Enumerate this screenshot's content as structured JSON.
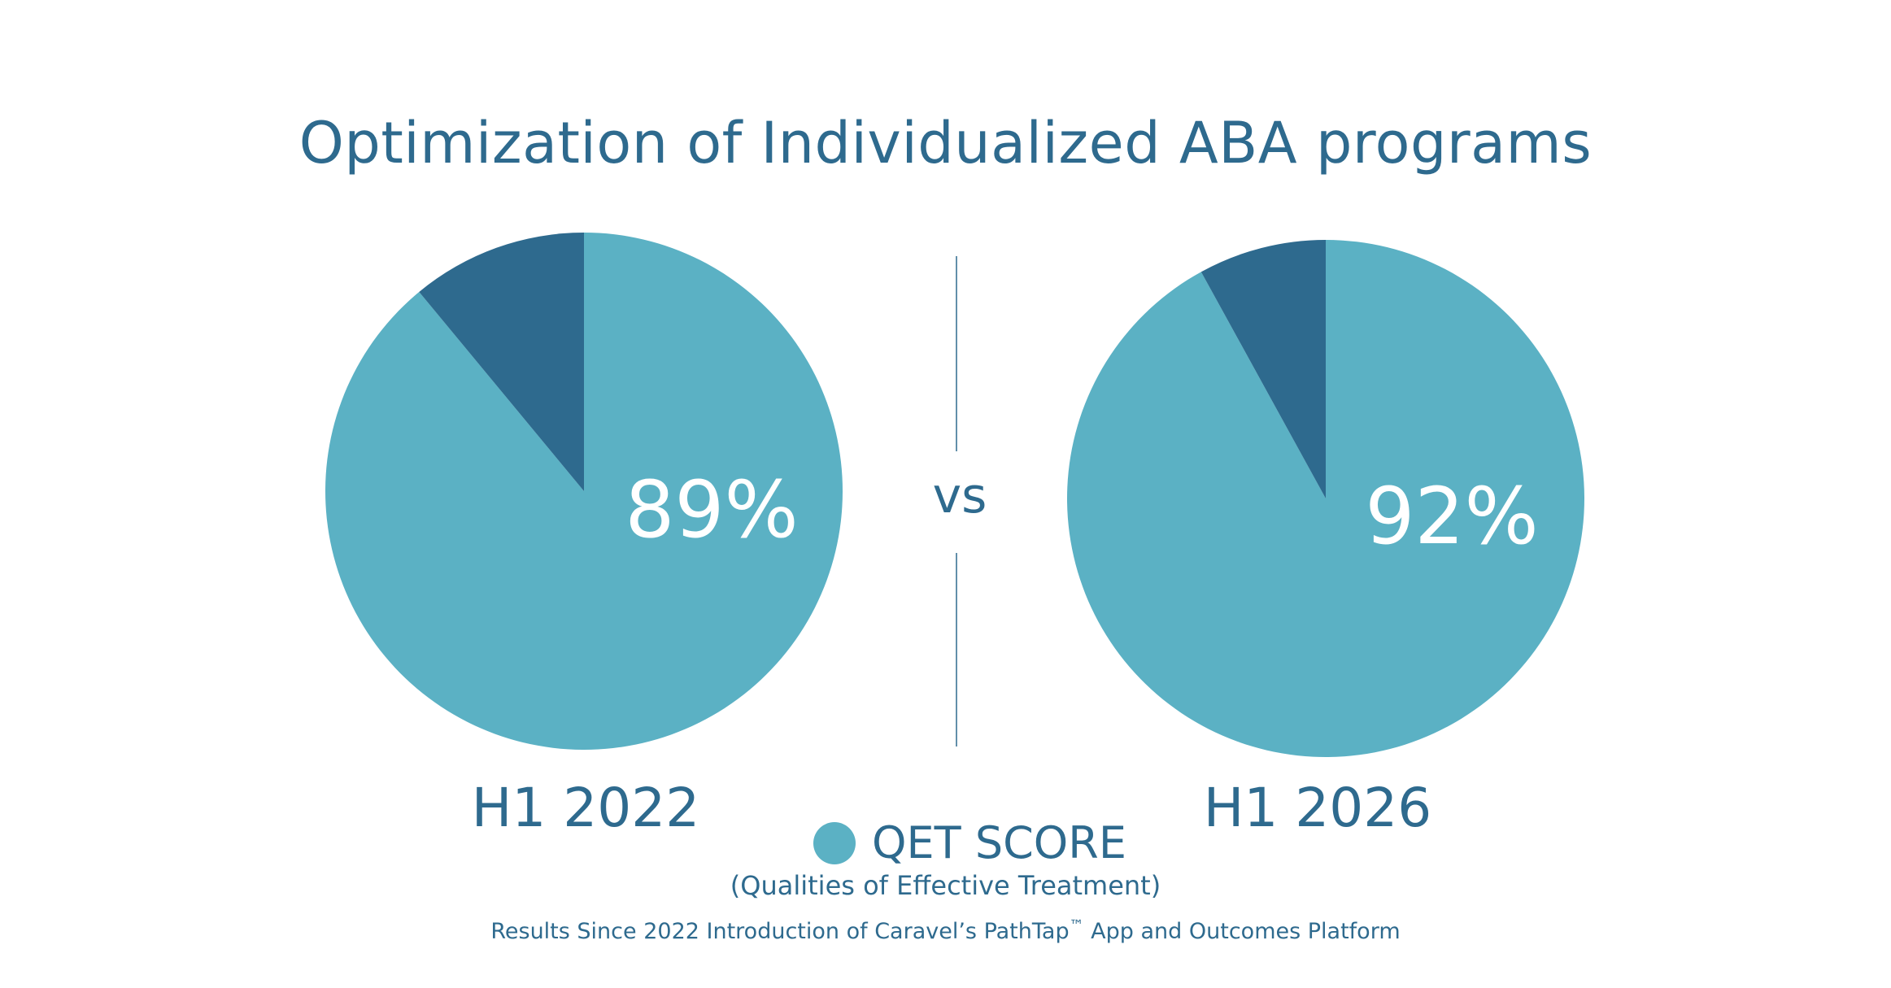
{
  "title": "Optimization of Individualized ABA programs",
  "colors": {
    "primary_text": "#2e6a8e",
    "qet_score": "#5bb1c4",
    "remainder": "#2e6a8e",
    "data_label": "#ffffff",
    "divider": "#2e6a8e"
  },
  "divider_label": "vs",
  "chart_data": [
    {
      "type": "pie",
      "title": "H1 2022",
      "slices": [
        {
          "label": "QET SCORE",
          "value": 89
        },
        {
          "label": "",
          "value": 11
        }
      ],
      "data_label": "89%"
    },
    {
      "type": "pie",
      "title": "H1 2026",
      "slices": [
        {
          "label": "QET SCORE",
          "value": 92
        },
        {
          "label": "",
          "value": 8
        }
      ],
      "data_label": "92%"
    }
  ],
  "legend": {
    "label": "QET SCORE",
    "sub": "(Qualities of Effective Treatment)"
  },
  "footnote": {
    "before": "Results Since 2022 Introduction of Caravel’s PathTap",
    "trademark": "™",
    "after": " App and Outcomes Platform"
  }
}
